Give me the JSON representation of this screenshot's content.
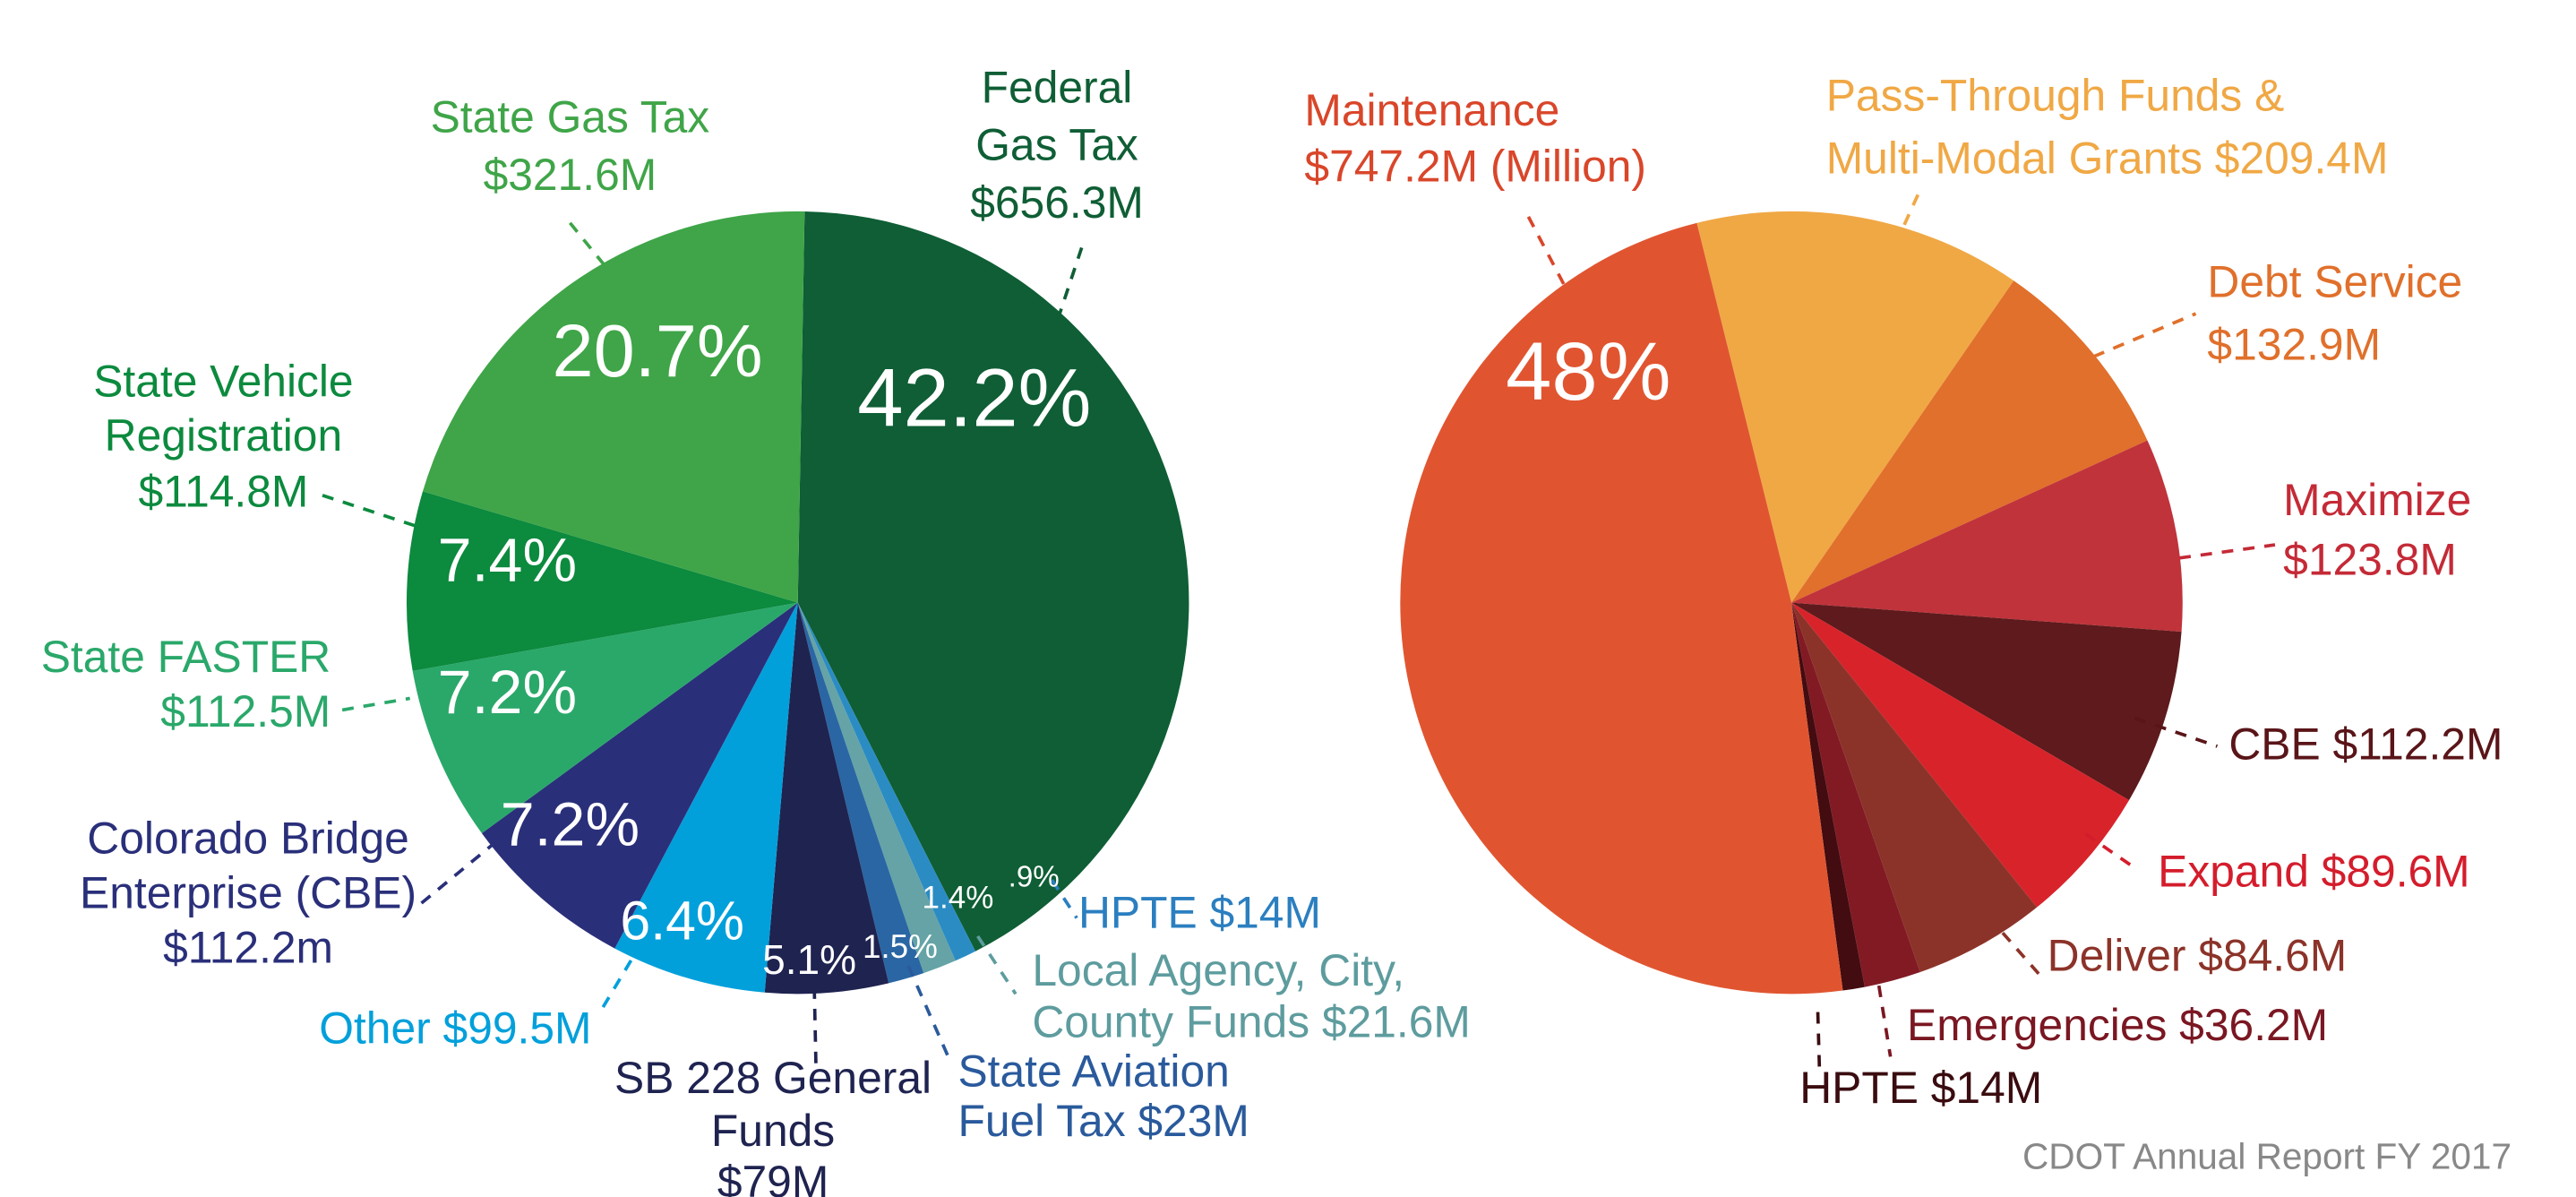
{
  "chart_data": [
    {
      "type": "pie",
      "slices": [
        {
          "label": [
            "Federal",
            "Gas Tax",
            "$656.3M"
          ],
          "value": 656.3,
          "percent_label": "42.2%",
          "percent": 42.2,
          "color": "#0f5e35",
          "text_color": "#0f5e35"
        },
        {
          "label": [
            "HPTE $14M"
          ],
          "value": 14,
          "percent_label": ".9%",
          "percent": 0.9,
          "color": "#2b8cc4",
          "text_color": "#2b7fc0"
        },
        {
          "label": [
            "Local Agency, City,",
            "County Funds $21.6M"
          ],
          "value": 21.6,
          "percent_label": "1.4%",
          "percent": 1.4,
          "color": "#65a3a6",
          "text_color": "#5e9c9e"
        },
        {
          "label": [
            "State Aviation",
            "Fuel Tax $23M"
          ],
          "value": 23,
          "percent_label": "1.5%",
          "percent": 1.5,
          "color": "#2a66a3",
          "text_color": "#2a5a9c"
        },
        {
          "label": [
            "SB 228 General",
            "Funds",
            "$79M"
          ],
          "value": 79,
          "percent_label": "5.1%",
          "percent": 5.1,
          "color": "#1f2350",
          "text_color": "#1f2350"
        },
        {
          "label": [
            "Other $99.5M"
          ],
          "value": 99.5,
          "percent_label": "6.4%",
          "percent": 6.4,
          "color": "#02a0db",
          "text_color": "#02a0db"
        },
        {
          "label": [
            "Colorado Bridge",
            "Enterprise (CBE)",
            "$112.2m"
          ],
          "value": 112.2,
          "percent_label": "7.2%",
          "percent": 7.2,
          "color": "#2a2f7a",
          "text_color": "#2a2f7a"
        },
        {
          "label": [
            "State FASTER",
            "$112.5M"
          ],
          "value": 112.5,
          "percent_label": "7.2%",
          "percent": 7.2,
          "color": "#2aa86a",
          "text_color": "#2aa86a"
        },
        {
          "label": [
            "State Vehicle",
            "Registration",
            "$114.8M"
          ],
          "value": 114.8,
          "percent_label": "7.4%",
          "percent": 7.4,
          "color": "#0c8a3e",
          "text_color": "#0c8a3e"
        },
        {
          "label": [
            "State Gas Tax",
            "$321.6M"
          ],
          "value": 321.6,
          "percent_label": "20.7%",
          "percent": 20.7,
          "color": "#3fa548",
          "text_color": "#3fa548"
        }
      ]
    },
    {
      "type": "pie",
      "slices": [
        {
          "label": [
            "Pass-Through Funds &",
            "Multi-Modal Grants $209.4M"
          ],
          "value": 209.4,
          "percent_label": "",
          "color": "#f0a845",
          "text_color": "#f0a845"
        },
        {
          "label": [
            "Debt Service",
            "$132.9M"
          ],
          "value": 132.9,
          "percent_label": "",
          "color": "#e0702b",
          "text_color": "#e0702b"
        },
        {
          "label": [
            "Maximize",
            "$123.8M"
          ],
          "value": 123.8,
          "percent_label": "",
          "color": "#c0333b",
          "text_color": "#c42a36"
        },
        {
          "label": [
            "CBE $112.2M"
          ],
          "value": 112.2,
          "percent_label": "",
          "color": "#5e1a1c",
          "text_color": "#5a1518"
        },
        {
          "label": [
            "Expand $89.6M"
          ],
          "value": 89.6,
          "percent_label": "",
          "color": "#d8232b",
          "text_color": "#d41d2c"
        },
        {
          "label": [
            "Deliver $84.6M"
          ],
          "value": 84.6,
          "percent_label": "",
          "color": "#8c3329",
          "text_color": "#8c3329"
        },
        {
          "label": [
            "Emergencies $36.2M"
          ],
          "value": 36.2,
          "percent_label": "",
          "color": "#821a24",
          "text_color": "#7a1722"
        },
        {
          "label": [
            "HPTE $14M"
          ],
          "value": 14,
          "percent_label": "",
          "color": "#420c10",
          "text_color": "#3a0c10"
        },
        {
          "label": [
            "Maintenance",
            "$747.2M (Million)"
          ],
          "value": 747.2,
          "percent_label": "48%",
          "percent": 48,
          "color": "#e05530",
          "text_color": "#d9462a"
        }
      ]
    }
  ],
  "footer": {
    "source": "CDOT Annual Report FY 2017",
    "color": "#888888"
  }
}
